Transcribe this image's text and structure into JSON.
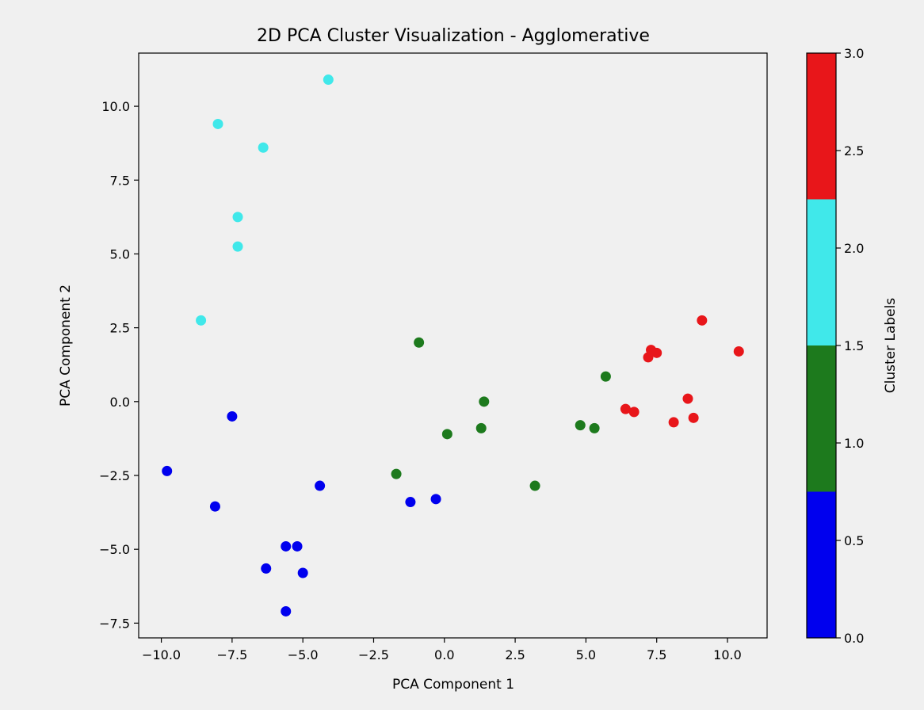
{
  "chart_data": {
    "type": "scatter",
    "title": "2D PCA Cluster Visualization - Agglomerative",
    "xlabel": "PCA Component 1",
    "ylabel": "PCA Component 2",
    "xlim": [
      -10.8,
      11.4
    ],
    "ylim": [
      -8.0,
      11.8
    ],
    "xticks": [
      -10.0,
      -7.5,
      -5.0,
      -2.5,
      0.0,
      2.5,
      5.0,
      7.5,
      10.0
    ],
    "xtick_labels": [
      "−10.0",
      "−7.5",
      "−5.0",
      "−2.5",
      "0.0",
      "2.5",
      "5.0",
      "7.5",
      "10.0"
    ],
    "yticks": [
      -7.5,
      -5.0,
      -2.5,
      0.0,
      2.5,
      5.0,
      7.5,
      10.0
    ],
    "ytick_labels": [
      "−7.5",
      "−5.0",
      "−2.5",
      "0.0",
      "2.5",
      "5.0",
      "7.5",
      "10.0"
    ],
    "grid": false,
    "colors": [
      "#0000ee",
      "#1d7a1d",
      "#40e8ea",
      "#e8161a"
    ],
    "points": [
      {
        "x": -7.5,
        "y": -0.5,
        "cluster": 0
      },
      {
        "x": -9.8,
        "y": -2.35,
        "cluster": 0
      },
      {
        "x": -8.1,
        "y": -3.55,
        "cluster": 0
      },
      {
        "x": -4.4,
        "y": -2.85,
        "cluster": 0
      },
      {
        "x": -1.2,
        "y": -3.4,
        "cluster": 0
      },
      {
        "x": -0.3,
        "y": -3.3,
        "cluster": 0
      },
      {
        "x": -5.6,
        "y": -4.9,
        "cluster": 0
      },
      {
        "x": -5.2,
        "y": -4.9,
        "cluster": 0
      },
      {
        "x": -6.3,
        "y": -5.65,
        "cluster": 0
      },
      {
        "x": -5.0,
        "y": -5.8,
        "cluster": 0
      },
      {
        "x": -5.6,
        "y": -7.1,
        "cluster": 0
      },
      {
        "x": -0.9,
        "y": 2.0,
        "cluster": 1
      },
      {
        "x": 1.4,
        "y": 0.0,
        "cluster": 1
      },
      {
        "x": 0.1,
        "y": -1.1,
        "cluster": 1
      },
      {
        "x": 1.3,
        "y": -0.9,
        "cluster": 1
      },
      {
        "x": -1.7,
        "y": -2.45,
        "cluster": 1
      },
      {
        "x": 3.2,
        "y": -2.85,
        "cluster": 1
      },
      {
        "x": 4.8,
        "y": -0.8,
        "cluster": 1
      },
      {
        "x": 5.3,
        "y": -0.9,
        "cluster": 1
      },
      {
        "x": 5.7,
        "y": 0.85,
        "cluster": 1
      },
      {
        "x": -4.1,
        "y": 10.9,
        "cluster": 2
      },
      {
        "x": -8.0,
        "y": 9.4,
        "cluster": 2
      },
      {
        "x": -6.4,
        "y": 8.6,
        "cluster": 2
      },
      {
        "x": -7.3,
        "y": 6.25,
        "cluster": 2
      },
      {
        "x": -7.3,
        "y": 5.25,
        "cluster": 2
      },
      {
        "x": -8.6,
        "y": 2.75,
        "cluster": 2
      },
      {
        "x": 9.1,
        "y": 2.75,
        "cluster": 3
      },
      {
        "x": 10.4,
        "y": 1.7,
        "cluster": 3
      },
      {
        "x": 7.3,
        "y": 1.75,
        "cluster": 3
      },
      {
        "x": 7.5,
        "y": 1.65,
        "cluster": 3
      },
      {
        "x": 7.2,
        "y": 1.5,
        "cluster": 3
      },
      {
        "x": 8.6,
        "y": 0.1,
        "cluster": 3
      },
      {
        "x": 6.4,
        "y": -0.25,
        "cluster": 3
      },
      {
        "x": 6.7,
        "y": -0.35,
        "cluster": 3
      },
      {
        "x": 8.1,
        "y": -0.7,
        "cluster": 3
      },
      {
        "x": 8.8,
        "y": -0.55,
        "cluster": 3
      }
    ],
    "colorbar": {
      "label": "Cluster Labels",
      "range": [
        0.0,
        3.0
      ],
      "ticks": [
        0.0,
        0.5,
        1.0,
        1.5,
        2.0,
        2.5,
        3.0
      ],
      "tick_labels": [
        "0.0",
        "0.5",
        "1.0",
        "1.5",
        "2.0",
        "2.5",
        "3.0"
      ],
      "bands": [
        {
          "from": 0.0,
          "to": 0.75,
          "color": "#0000ee"
        },
        {
          "from": 0.75,
          "to": 1.5,
          "color": "#1d7a1d"
        },
        {
          "from": 1.5,
          "to": 2.25,
          "color": "#40e8ea"
        },
        {
          "from": 2.25,
          "to": 3.0,
          "color": "#e8161a"
        }
      ]
    }
  }
}
